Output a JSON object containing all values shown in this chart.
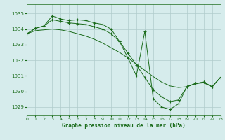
{
  "title": "Graphe pression niveau de la mer (hPa)",
  "bg_color": "#d6ecec",
  "grid_color": "#b0cccc",
  "line_color": "#1a6b1a",
  "xlim": [
    0,
    23
  ],
  "ylim": [
    1028.5,
    1035.6
  ],
  "yticks": [
    1029,
    1030,
    1031,
    1032,
    1033,
    1034,
    1035
  ],
  "xticks": [
    0,
    1,
    2,
    3,
    4,
    5,
    6,
    7,
    8,
    9,
    10,
    11,
    12,
    13,
    14,
    15,
    16,
    17,
    18,
    19,
    20,
    21,
    22,
    23
  ],
  "series1_x": [
    0,
    1,
    2,
    3,
    4,
    5,
    6,
    7,
    8,
    9,
    10,
    11,
    12,
    13,
    14,
    15,
    16,
    17,
    18,
    19,
    20,
    21,
    22,
    23
  ],
  "series1_y": [
    1033.7,
    1034.05,
    1034.2,
    1034.85,
    1034.65,
    1034.55,
    1034.6,
    1034.55,
    1034.4,
    1034.3,
    1034.0,
    1033.2,
    1032.15,
    1031.0,
    1033.85,
    1029.55,
    1029.0,
    1028.85,
    1029.2,
    1030.3,
    1030.5,
    1030.6,
    1030.3,
    1030.9
  ],
  "series2_x": [
    0,
    1,
    2,
    3,
    4,
    5,
    6,
    7,
    8,
    9,
    10,
    11,
    12,
    13,
    14,
    15,
    16,
    17,
    18,
    19,
    20,
    21,
    22,
    23
  ],
  "series2_y": [
    1033.7,
    1033.9,
    1033.95,
    1034.0,
    1033.95,
    1033.85,
    1033.7,
    1033.55,
    1033.35,
    1033.1,
    1032.8,
    1032.5,
    1032.15,
    1031.75,
    1031.35,
    1030.95,
    1030.6,
    1030.35,
    1030.25,
    1030.3,
    1030.5,
    1030.55,
    1030.3,
    1030.9
  ],
  "series3_x": [
    0,
    1,
    2,
    3,
    4,
    5,
    6,
    7,
    8,
    9,
    10,
    11,
    12,
    13,
    14,
    15,
    16,
    17,
    18,
    19,
    20,
    21,
    22,
    23
  ],
  "series3_y": [
    1033.7,
    1034.05,
    1034.2,
    1034.6,
    1034.5,
    1034.4,
    1034.35,
    1034.3,
    1034.15,
    1034.0,
    1033.7,
    1033.2,
    1032.45,
    1031.7,
    1030.9,
    1030.1,
    1029.65,
    1029.35,
    1029.45,
    1030.3,
    1030.5,
    1030.6,
    1030.3,
    1030.9
  ]
}
